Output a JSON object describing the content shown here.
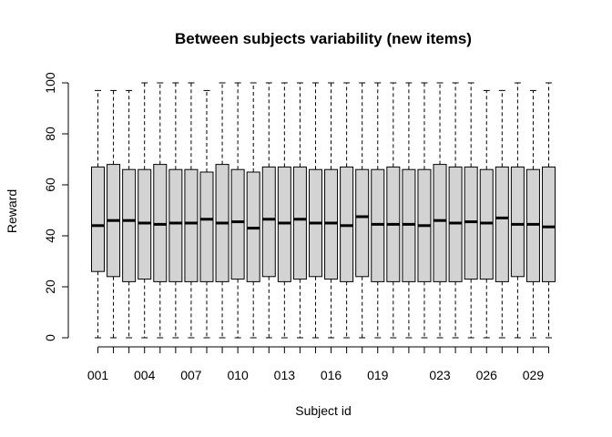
{
  "chart_data": {
    "type": "boxplot",
    "title": "Between subjects variability (new items)",
    "xlabel": "Subject id",
    "ylabel": "Reward",
    "ylim": [
      0,
      100
    ],
    "yticks": [
      0,
      20,
      40,
      60,
      80,
      100
    ],
    "x_tick_labels_shown": [
      "001",
      "004",
      "007",
      "010",
      "013",
      "016",
      "019",
      "023",
      "026",
      "029"
    ],
    "box_fill": "#d3d3d3",
    "grid": false,
    "boxes": [
      {
        "id": "001",
        "min": 0,
        "q1": 26,
        "median": 44,
        "q3": 67,
        "max": 97
      },
      {
        "id": "002",
        "min": 0,
        "q1": 24,
        "median": 46,
        "q3": 68,
        "max": 97
      },
      {
        "id": "003",
        "min": 0,
        "q1": 22,
        "median": 46,
        "q3": 66,
        "max": 97
      },
      {
        "id": "004",
        "min": 0,
        "q1": 23,
        "median": 45,
        "q3": 66,
        "max": 100
      },
      {
        "id": "005",
        "min": 0,
        "q1": 22,
        "median": 44.5,
        "q3": 68,
        "max": 100
      },
      {
        "id": "006",
        "min": 0,
        "q1": 22,
        "median": 45,
        "q3": 66,
        "max": 100
      },
      {
        "id": "007",
        "min": 0,
        "q1": 22,
        "median": 45,
        "q3": 66,
        "max": 100
      },
      {
        "id": "008",
        "min": 0,
        "q1": 22,
        "median": 46.5,
        "q3": 65,
        "max": 97
      },
      {
        "id": "009",
        "min": 0,
        "q1": 22,
        "median": 45,
        "q3": 68,
        "max": 100
      },
      {
        "id": "010",
        "min": 0,
        "q1": 23,
        "median": 45.5,
        "q3": 66,
        "max": 100
      },
      {
        "id": "011",
        "min": 0,
        "q1": 22,
        "median": 43,
        "q3": 65,
        "max": 100
      },
      {
        "id": "012",
        "min": 0,
        "q1": 24,
        "median": 46.5,
        "q3": 67,
        "max": 100
      },
      {
        "id": "013",
        "min": 0,
        "q1": 22,
        "median": 45,
        "q3": 67,
        "max": 100
      },
      {
        "id": "014",
        "min": 0,
        "q1": 23,
        "median": 46.5,
        "q3": 67,
        "max": 100
      },
      {
        "id": "015",
        "min": 0,
        "q1": 24,
        "median": 45,
        "q3": 66,
        "max": 100
      },
      {
        "id": "016",
        "min": 0,
        "q1": 23,
        "median": 45,
        "q3": 66,
        "max": 100
      },
      {
        "id": "017",
        "min": 0,
        "q1": 22,
        "median": 44,
        "q3": 67,
        "max": 100
      },
      {
        "id": "018",
        "min": 0,
        "q1": 24,
        "median": 47.5,
        "q3": 66,
        "max": 100
      },
      {
        "id": "019",
        "min": 0,
        "q1": 22,
        "median": 44.5,
        "q3": 66,
        "max": 100
      },
      {
        "id": "020",
        "min": 0,
        "q1": 22,
        "median": 44.5,
        "q3": 67,
        "max": 100
      },
      {
        "id": "021",
        "min": 0,
        "q1": 22,
        "median": 44.5,
        "q3": 66,
        "max": 100
      },
      {
        "id": "022",
        "min": 0,
        "q1": 22,
        "median": 44,
        "q3": 66,
        "max": 100
      },
      {
        "id": "023",
        "min": 0,
        "q1": 22,
        "median": 46,
        "q3": 68,
        "max": 100
      },
      {
        "id": "024",
        "min": 0,
        "q1": 22,
        "median": 45,
        "q3": 67,
        "max": 100
      },
      {
        "id": "025",
        "min": 0,
        "q1": 23,
        "median": 45.5,
        "q3": 67,
        "max": 100
      },
      {
        "id": "026",
        "min": 0,
        "q1": 23,
        "median": 45,
        "q3": 66,
        "max": 97
      },
      {
        "id": "027",
        "min": 0,
        "q1": 22,
        "median": 47,
        "q3": 67,
        "max": 97
      },
      {
        "id": "028",
        "min": 0,
        "q1": 24,
        "median": 44.5,
        "q3": 67,
        "max": 100
      },
      {
        "id": "029",
        "min": 0,
        "q1": 22,
        "median": 44.5,
        "q3": 66,
        "max": 97
      },
      {
        "id": "030",
        "min": 0,
        "q1": 22,
        "median": 43.5,
        "q3": 67,
        "max": 100
      }
    ]
  }
}
